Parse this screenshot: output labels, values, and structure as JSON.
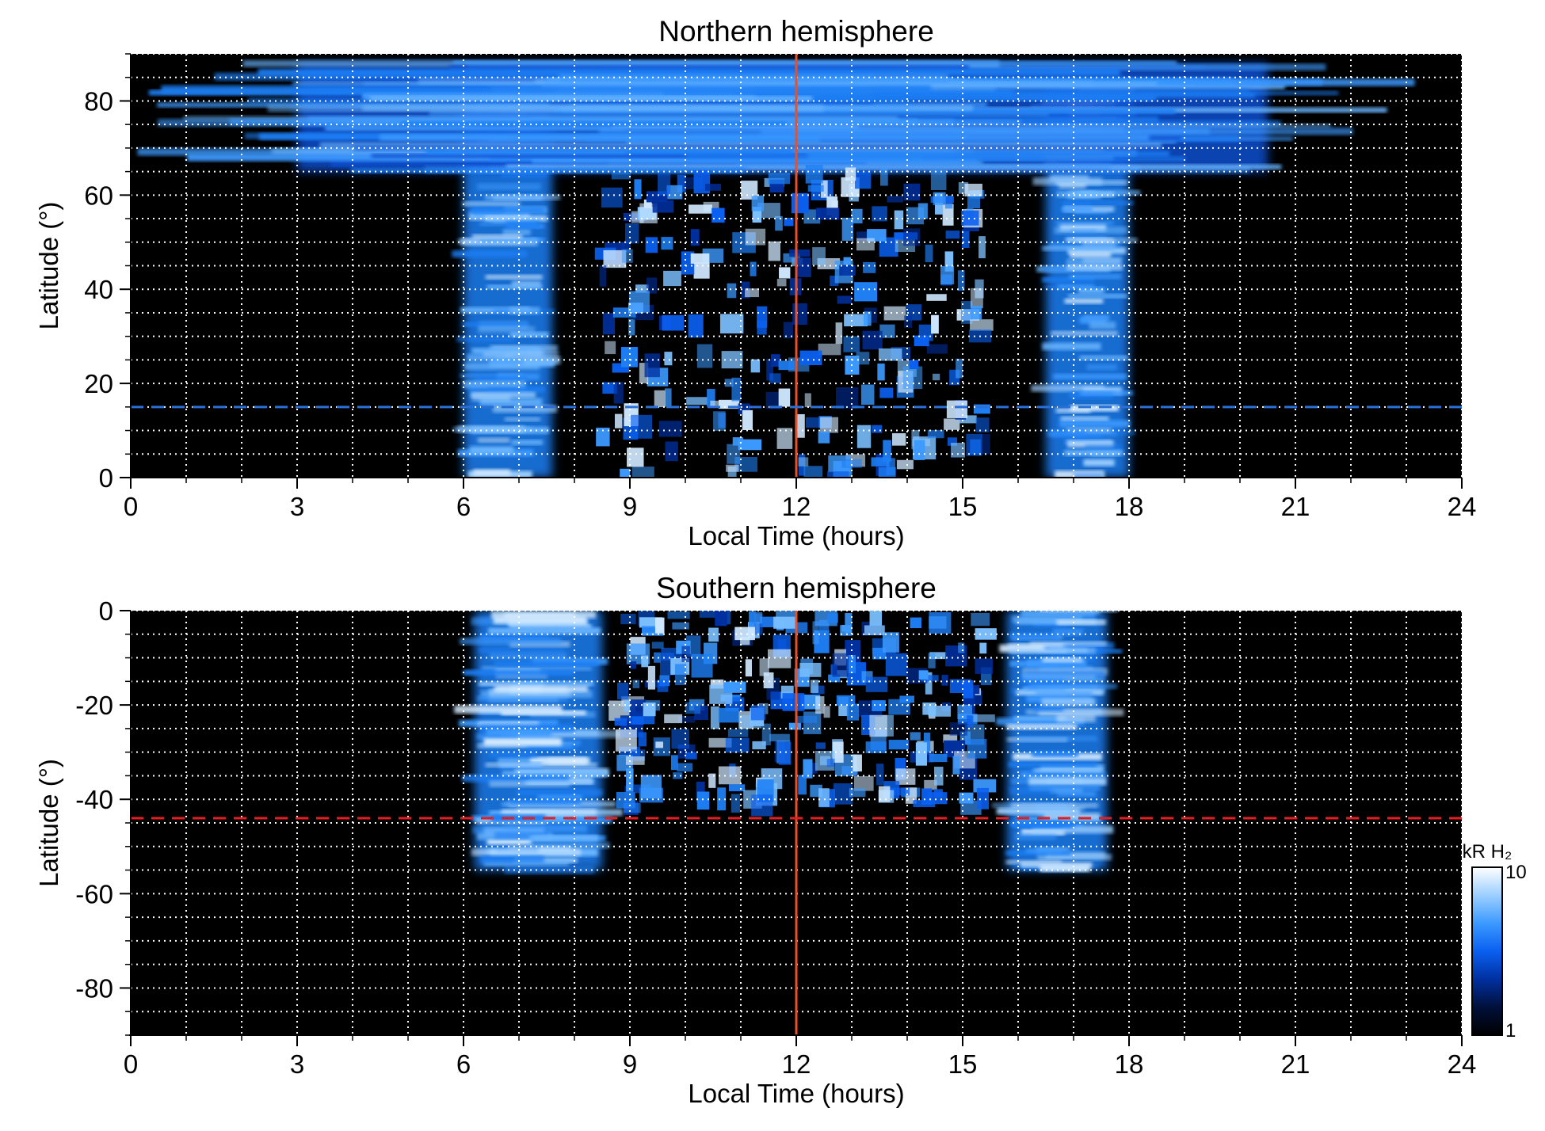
{
  "chart_data": [
    {
      "type": "heatmap",
      "title": "Northern hemisphere",
      "xlabel": "Local Time (hours)",
      "ylabel": "Latitude (°)",
      "xlim": [
        0,
        24
      ],
      "ylim": [
        0,
        90
      ],
      "xticks": [
        "0",
        "3",
        "6",
        "9",
        "12",
        "15",
        "18",
        "21",
        "24"
      ],
      "yticks": [
        "0",
        "20",
        "40",
        "60",
        "80"
      ],
      "ytick_values": [
        0,
        20,
        40,
        60,
        80
      ],
      "grid": true,
      "background": "#000000",
      "reference_lines": [
        {
          "orientation": "vertical",
          "x": 12,
          "color": "#e8502a",
          "style": "solid"
        },
        {
          "orientation": "horizontal",
          "y": 15,
          "color": "#2a6fd6",
          "style": "dashed"
        }
      ],
      "emission_regions": [
        {
          "region": "dawn band",
          "local_time": [
            6.0,
            7.6
          ],
          "latitude": [
            0,
            85
          ],
          "intensity": "high"
        },
        {
          "region": "dusk band",
          "local_time": [
            16.5,
            18.0
          ],
          "latitude": [
            0,
            85
          ],
          "intensity": "high"
        },
        {
          "region": "high-latitude arc",
          "local_time": [
            3.0,
            20.5
          ],
          "latitude": [
            65,
            88
          ],
          "intensity": "medium"
        },
        {
          "region": "noon patches",
          "local_time": [
            8.5,
            15.5
          ],
          "latitude": [
            0,
            65
          ],
          "intensity": "patchy"
        }
      ]
    },
    {
      "type": "heatmap",
      "title": "Southern hemisphere",
      "xlabel": "Local Time (hours)",
      "ylabel": "Latitude (°)",
      "xlim": [
        0,
        24
      ],
      "ylim": [
        -90,
        0
      ],
      "xticks": [
        "0",
        "3",
        "6",
        "9",
        "12",
        "15",
        "18",
        "21",
        "24"
      ],
      "yticks": [
        "0",
        "-20",
        "-40",
        "-60",
        "-80"
      ],
      "ytick_values": [
        0,
        -20,
        -40,
        -60,
        -80
      ],
      "grid": true,
      "background": "#000000",
      "reference_lines": [
        {
          "orientation": "vertical",
          "x": 12,
          "color": "#e8502a",
          "style": "solid"
        },
        {
          "orientation": "horizontal",
          "y": -44,
          "color": "#e02020",
          "style": "dashed"
        }
      ],
      "emission_regions": [
        {
          "region": "dawn band",
          "local_time": [
            6.2,
            8.5
          ],
          "latitude": [
            -55,
            0
          ],
          "intensity": "high"
        },
        {
          "region": "dusk band",
          "local_time": [
            15.8,
            17.6
          ],
          "latitude": [
            -55,
            0
          ],
          "intensity": "high"
        },
        {
          "region": "noon patches",
          "local_time": [
            8.8,
            15.5
          ],
          "latitude": [
            -42,
            0
          ],
          "intensity": "patchy"
        }
      ]
    }
  ],
  "colorbar": {
    "label": "kR H₂",
    "min_label": "1",
    "max_label": "10",
    "min": 1,
    "max": 10,
    "scale": "log",
    "colors": [
      "#000000",
      "#00103a",
      "#0030a0",
      "#0a60f0",
      "#3c9aff",
      "#9ccfff",
      "#ffffff"
    ]
  }
}
